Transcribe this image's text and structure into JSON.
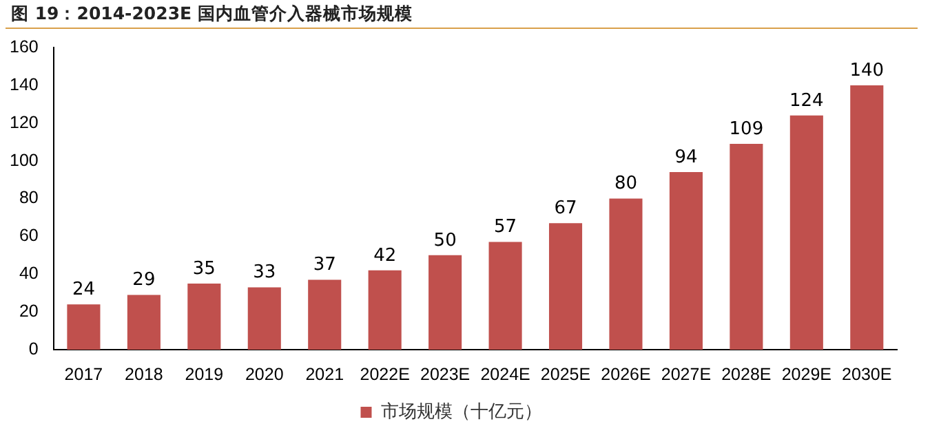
{
  "chart_data": {
    "type": "bar",
    "title": "图 19：2014-2023E 国内血管介入器械市场规模",
    "categories": [
      "2017",
      "2018",
      "2019",
      "2020",
      "2021",
      "2022E",
      "2023E",
      "2024E",
      "2025E",
      "2026E",
      "2027E",
      "2028E",
      "2029E",
      "2030E"
    ],
    "series": [
      {
        "name": "市场规模（十亿元）",
        "color": "#c0504d",
        "values": [
          24,
          29,
          35,
          33,
          37,
          42,
          50,
          57,
          67,
          80,
          94,
          109,
          124,
          140
        ]
      }
    ],
    "ylim": [
      0,
      160
    ],
    "yticks": [
      0,
      20,
      40,
      60,
      80,
      100,
      120,
      140,
      160
    ],
    "grid": false,
    "legend": "bottom",
    "data_labels": true
  }
}
